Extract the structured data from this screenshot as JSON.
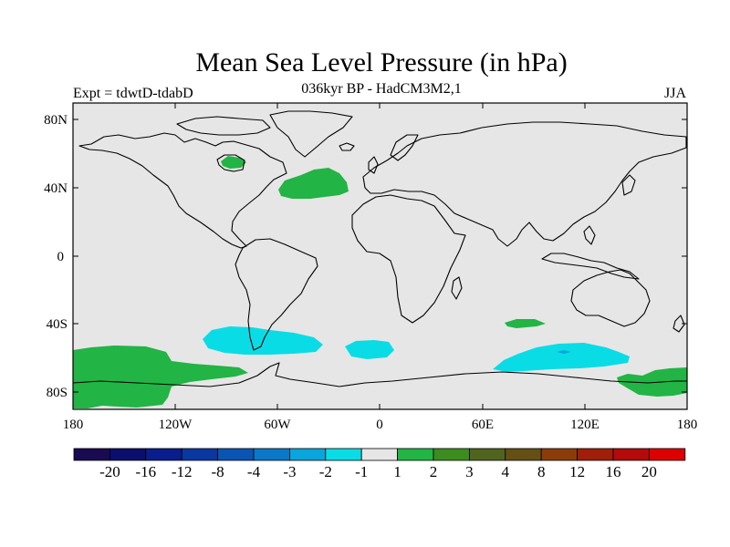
{
  "title": "Mean Sea Level Pressure (in hPa)",
  "subtitle": "036kyr BP - HadCM3M2,1",
  "experiment_label": "Expt = tdwtD-tdabD",
  "season_label": "JJA",
  "map": {
    "projection": "cylindrical-equidistant",
    "lon_range": [
      -180,
      180
    ],
    "lat_range": [
      -90,
      90
    ],
    "lat_tick_labels": [
      {
        "lat": 80,
        "label": "80N"
      },
      {
        "lat": 40,
        "label": "40N"
      },
      {
        "lat": 0,
        "label": "0"
      },
      {
        "lat": -40,
        "label": "40S"
      },
      {
        "lat": -80,
        "label": "80S"
      }
    ],
    "lon_tick_labels": [
      {
        "lon": -180,
        "label": "180"
      },
      {
        "lon": -120,
        "label": "120W"
      },
      {
        "lon": -60,
        "label": "60W"
      },
      {
        "lon": 0,
        "label": "0"
      },
      {
        "lon": 60,
        "label": "60E"
      },
      {
        "lon": 120,
        "label": "120E"
      },
      {
        "lon": 180,
        "label": "180"
      }
    ]
  },
  "colorbar": {
    "colors": [
      "#1a0a52",
      "#0a0f6e",
      "#0a1d8c",
      "#0a37a0",
      "#0a55b4",
      "#0a78c8",
      "#0aa5dc",
      "#0adce6",
      "#e6e6e6",
      "#22b445",
      "#3c8c1e",
      "#50641e",
      "#645014",
      "#8c3c0a",
      "#a01e0a",
      "#b40a0a",
      "#dc0000"
    ],
    "labels": [
      "-20",
      "-16",
      "-12",
      "-8",
      "-4",
      "-3",
      "-2",
      "-1",
      "1",
      "2",
      "3",
      "4",
      "8",
      "12",
      "16",
      "20"
    ]
  },
  "colors": {
    "background": "#e6e6e6",
    "positive_anomaly": "#22b445",
    "negative_anomaly": "#0adce6",
    "coast": "#000000"
  }
}
